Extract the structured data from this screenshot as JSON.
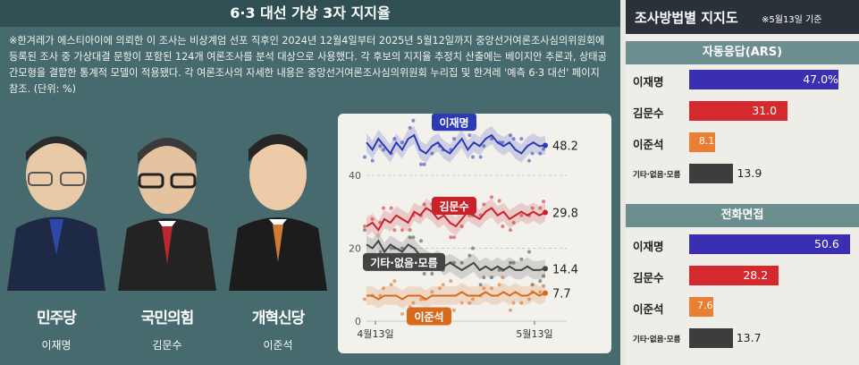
{
  "left": {
    "title": "6·3 대선 가상 3자 지지율",
    "note": "※한겨레가 에스티아이에 의뢰한 이 조사는 비상계엄 선포 직후인 2024년 12월4일부터 2025년 5월12일까지 중앙선거여론조사심의위원회에 등록된 조사 중 가상대결 문항이 포함된 124개 여론조사를 분석 대상으로 사용했다. 각 후보의 지지율 추정치 산출에는 베이지안 추론과, 상태공간모형을 결합한 통계적 모델이 적용됐다. 각 여론조사의 자세한 내용은 중앙선거여론조사심의위원회 누리집 및 한겨레 '예측 6·3 대선' 페이지 참조. (단위: %)",
    "candidates": [
      {
        "name": "이재명",
        "party": "민주당",
        "color": "#2a3d8f"
      },
      {
        "name": "김문수",
        "party": "국민의힘",
        "color": "#c0262c"
      },
      {
        "name": "이준석",
        "party": "개혁신당",
        "color": "#d86a1e"
      }
    ]
  },
  "chart_data": [
    {
      "type": "line",
      "title": "",
      "x_ticks": [
        "4월13일",
        "5월13일"
      ],
      "y_ticks": [
        0,
        20,
        40
      ],
      "ylim": [
        0,
        52
      ],
      "series": [
        {
          "name": "이재명",
          "color": "#2c3ab8",
          "last_label": "48.2",
          "values": [
            49,
            47,
            50,
            48,
            46,
            49,
            47,
            50,
            51,
            47,
            46,
            48,
            49,
            47,
            46,
            48,
            50,
            47,
            49,
            48,
            50,
            51,
            49,
            48,
            49,
            47,
            46,
            48,
            49,
            48,
            48.2
          ]
        },
        {
          "name": "김문수",
          "color": "#c8232a",
          "last_label": "29.8",
          "values": [
            26,
            27,
            25,
            28,
            27,
            29,
            28,
            27,
            30,
            29,
            31,
            30,
            28,
            29,
            27,
            26,
            28,
            30,
            29,
            28,
            30,
            31,
            29,
            30,
            28,
            29,
            30,
            29,
            30,
            29,
            29.8
          ]
        },
        {
          "name": "기타·없음·모름",
          "color": "#444444",
          "last_label": "14.4",
          "values": [
            21,
            20,
            22,
            19,
            21,
            20,
            19,
            21,
            20,
            18,
            17,
            16,
            17,
            15,
            16,
            15,
            14,
            15,
            16,
            14,
            15,
            14,
            15,
            14,
            15,
            14,
            14,
            15,
            14,
            14,
            14.4
          ]
        },
        {
          "name": "이준석",
          "color": "#d86a1e",
          "last_label": "7.7",
          "values": [
            7,
            7,
            6,
            7,
            7,
            7,
            6,
            7,
            7,
            7,
            6,
            7,
            7,
            7,
            7,
            7,
            8,
            7,
            7,
            7,
            8,
            7,
            7,
            8,
            7,
            8,
            7,
            7,
            8,
            7,
            7.7
          ]
        }
      ]
    },
    {
      "type": "bar",
      "title": "조사방법별 지지도",
      "subtitle": "※5월13일 기준",
      "groups": [
        {
          "name": "자동응답(ARS)",
          "categories": [
            "이재명",
            "김문수",
            "이준석",
            "기타·없음·모름"
          ],
          "values": [
            47.0,
            31.0,
            8.1,
            13.9
          ],
          "labels": [
            "47.0%",
            "31.0",
            "8.1",
            "13.9"
          ]
        },
        {
          "name": "전화면접",
          "categories": [
            "이재명",
            "김문수",
            "이준석",
            "기타·없음·모름"
          ],
          "values": [
            50.6,
            28.2,
            7.6,
            13.7
          ],
          "labels": [
            "50.6",
            "28.2",
            "7.6",
            "13.7"
          ]
        }
      ],
      "colors": [
        "#3a2fb0",
        "#d42a2e",
        "#e87f33",
        "#3d3d3d"
      ]
    }
  ]
}
